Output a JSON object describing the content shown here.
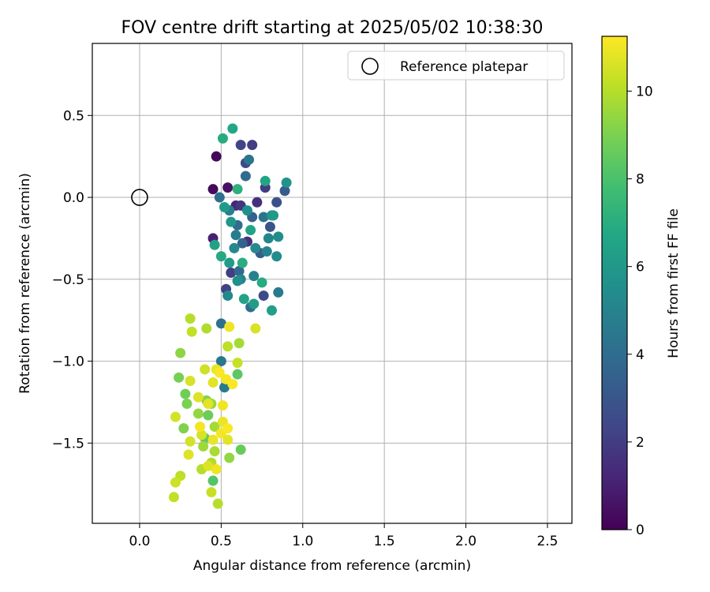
{
  "chart_data": {
    "type": "scatter",
    "title": "FOV centre drift starting at 2025/05/02 10:38:30",
    "xlabel": "Angular distance from reference (arcmin)",
    "ylabel": "Rotation from reference (arcmin)",
    "xlim": [
      -0.29,
      2.65
    ],
    "ylim": [
      -1.99,
      0.94
    ],
    "xticks": [
      0.0,
      0.5,
      1.0,
      1.5,
      2.0,
      2.5
    ],
    "xtick_labels": [
      "0.0",
      "0.5",
      "1.0",
      "1.5",
      "2.0",
      "2.5"
    ],
    "yticks": [
      0.5,
      0.0,
      -0.5,
      -1.0,
      -1.5
    ],
    "ytick_labels": [
      "0.5",
      "0.0",
      "−0.5",
      "−1.0",
      "−1.5"
    ],
    "grid": true,
    "legend": {
      "placement": "top-right",
      "entries": [
        "Reference platepar"
      ]
    },
    "reference_point": {
      "x": 0.0,
      "y": 0.0,
      "label": "Reference platepar"
    },
    "colorbar": {
      "label": "Hours from first FF file",
      "colormap": "viridis",
      "range": [
        0,
        11.25
      ],
      "ticks": [
        0,
        2,
        4,
        6,
        8,
        10
      ],
      "tick_labels": [
        "0",
        "2",
        "4",
        "6",
        "8",
        "10"
      ]
    },
    "points": [
      {
        "x": 0.47,
        "y": 0.25,
        "h": 0.2
      },
      {
        "x": 0.54,
        "y": 0.06,
        "h": 0.5
      },
      {
        "x": 0.45,
        "y": 0.05,
        "h": 0.3
      },
      {
        "x": 0.45,
        "y": -0.25,
        "h": 1.0
      },
      {
        "x": 0.59,
        "y": -0.05,
        "h": 1.2
      },
      {
        "x": 0.72,
        "y": -0.03,
        "h": 1.5
      },
      {
        "x": 0.62,
        "y": 0.32,
        "h": 2.3
      },
      {
        "x": 0.69,
        "y": 0.32,
        "h": 2.0
      },
      {
        "x": 0.65,
        "y": 0.21,
        "h": 2.5
      },
      {
        "x": 0.77,
        "y": 0.06,
        "h": 2.0
      },
      {
        "x": 0.62,
        "y": -0.05,
        "h": 1.8
      },
      {
        "x": 0.66,
        "y": -0.27,
        "h": 1.5
      },
      {
        "x": 0.56,
        "y": -0.46,
        "h": 2.0
      },
      {
        "x": 0.53,
        "y": -0.56,
        "h": 2.2
      },
      {
        "x": 0.76,
        "y": -0.6,
        "h": 2.5
      },
      {
        "x": 0.84,
        "y": -0.03,
        "h": 2.8
      },
      {
        "x": 0.89,
        "y": 0.04,
        "h": 3.2
      },
      {
        "x": 0.8,
        "y": -0.18,
        "h": 3.0
      },
      {
        "x": 0.69,
        "y": -0.12,
        "h": 3.5
      },
      {
        "x": 0.63,
        "y": -0.28,
        "h": 3.6
      },
      {
        "x": 0.61,
        "y": -0.45,
        "h": 3.8
      },
      {
        "x": 0.74,
        "y": -0.34,
        "h": 3.3
      },
      {
        "x": 0.68,
        "y": -0.67,
        "h": 4.0
      },
      {
        "x": 0.5,
        "y": -0.77,
        "h": 4.2
      },
      {
        "x": 0.5,
        "y": -1.0,
        "h": 4.5
      },
      {
        "x": 0.52,
        "y": -1.16,
        "h": 4.6
      },
      {
        "x": 0.85,
        "y": -0.58,
        "h": 4.6
      },
      {
        "x": 0.6,
        "y": -0.17,
        "h": 4.0
      },
      {
        "x": 0.76,
        "y": -0.12,
        "h": 4.3
      },
      {
        "x": 0.55,
        "y": -0.08,
        "h": 4.8
      },
      {
        "x": 0.62,
        "y": -0.5,
        "h": 5.0
      },
      {
        "x": 0.7,
        "y": -0.48,
        "h": 4.9
      },
      {
        "x": 0.58,
        "y": -0.31,
        "h": 5.2
      },
      {
        "x": 0.84,
        "y": -0.36,
        "h": 5.4
      },
      {
        "x": 0.79,
        "y": -0.25,
        "h": 5.1
      },
      {
        "x": 0.66,
        "y": -0.08,
        "h": 5.6
      },
      {
        "x": 0.9,
        "y": 0.09,
        "h": 5.7
      },
      {
        "x": 0.81,
        "y": -0.11,
        "h": 5.8
      },
      {
        "x": 0.85,
        "y": -0.24,
        "h": 5.5
      },
      {
        "x": 0.56,
        "y": -0.15,
        "h": 5.9
      },
      {
        "x": 0.52,
        "y": -0.06,
        "h": 6.1
      },
      {
        "x": 0.57,
        "y": 0.42,
        "h": 6.7
      },
      {
        "x": 0.51,
        "y": 0.36,
        "h": 6.9
      },
      {
        "x": 0.77,
        "y": 0.1,
        "h": 6.6
      },
      {
        "x": 0.6,
        "y": 0.05,
        "h": 7.1
      },
      {
        "x": 0.7,
        "y": -0.65,
        "h": 6.2
      },
      {
        "x": 0.64,
        "y": -0.62,
        "h": 6.5
      },
      {
        "x": 0.81,
        "y": -0.69,
        "h": 6.3
      },
      {
        "x": 0.5,
        "y": -0.36,
        "h": 6.8
      },
      {
        "x": 0.63,
        "y": -0.4,
        "h": 7.0
      },
      {
        "x": 0.46,
        "y": -0.29,
        "h": 6.4
      },
      {
        "x": 0.75,
        "y": -0.52,
        "h": 6.9
      },
      {
        "x": 0.55,
        "y": -0.4,
        "h": 6.1
      },
      {
        "x": 0.68,
        "y": -0.2,
        "h": 6.5
      },
      {
        "x": 0.71,
        "y": -0.31,
        "h": 5.3
      },
      {
        "x": 0.49,
        "y": 0.0,
        "h": 4.1
      },
      {
        "x": 0.67,
        "y": 0.23,
        "h": 4.4
      },
      {
        "x": 0.65,
        "y": 0.13,
        "h": 3.9
      },
      {
        "x": 0.59,
        "y": -0.23,
        "h": 4.7
      },
      {
        "x": 0.78,
        "y": -0.33,
        "h": 5.0
      },
      {
        "x": 0.54,
        "y": -0.6,
        "h": 5.2
      },
      {
        "x": 0.6,
        "y": -0.51,
        "h": 5.6
      },
      {
        "x": 0.82,
        "y": -0.11,
        "h": 6.0
      },
      {
        "x": 0.6,
        "y": -1.08,
        "h": 8.4
      },
      {
        "x": 0.62,
        "y": -1.54,
        "h": 8.6
      },
      {
        "x": 0.45,
        "y": -1.73,
        "h": 8.2
      },
      {
        "x": 0.24,
        "y": -1.1,
        "h": 8.9
      },
      {
        "x": 0.25,
        "y": -0.95,
        "h": 9.3
      },
      {
        "x": 0.28,
        "y": -1.2,
        "h": 8.8
      },
      {
        "x": 0.29,
        "y": -1.26,
        "h": 9.0
      },
      {
        "x": 0.27,
        "y": -1.41,
        "h": 9.1
      },
      {
        "x": 0.36,
        "y": -1.32,
        "h": 9.4
      },
      {
        "x": 0.41,
        "y": -1.24,
        "h": 9.2
      },
      {
        "x": 0.42,
        "y": -1.33,
        "h": 8.7
      },
      {
        "x": 0.4,
        "y": -1.47,
        "h": 8.5
      },
      {
        "x": 0.39,
        "y": -1.52,
        "h": 9.6
      },
      {
        "x": 0.46,
        "y": -1.55,
        "h": 9.8
      },
      {
        "x": 0.44,
        "y": -1.62,
        "h": 9.9
      },
      {
        "x": 0.38,
        "y": -1.66,
        "h": 10.0
      },
      {
        "x": 0.25,
        "y": -1.7,
        "h": 10.1
      },
      {
        "x": 0.22,
        "y": -1.74,
        "h": 10.4
      },
      {
        "x": 0.21,
        "y": -1.83,
        "h": 10.2
      },
      {
        "x": 0.44,
        "y": -1.8,
        "h": 10.3
      },
      {
        "x": 0.48,
        "y": -1.87,
        "h": 10.0
      },
      {
        "x": 0.22,
        "y": -1.34,
        "h": 10.5
      },
      {
        "x": 0.31,
        "y": -1.12,
        "h": 10.6
      },
      {
        "x": 0.36,
        "y": -1.22,
        "h": 10.7
      },
      {
        "x": 0.4,
        "y": -1.05,
        "h": 10.4
      },
      {
        "x": 0.47,
        "y": -1.05,
        "h": 10.9
      },
      {
        "x": 0.45,
        "y": -1.13,
        "h": 10.8
      },
      {
        "x": 0.51,
        "y": -1.27,
        "h": 11.0
      },
      {
        "x": 0.53,
        "y": -1.11,
        "h": 11.1
      },
      {
        "x": 0.57,
        "y": -1.14,
        "h": 11.2
      },
      {
        "x": 0.6,
        "y": -1.01,
        "h": 10.3
      },
      {
        "x": 0.61,
        "y": -0.89,
        "h": 9.7
      },
      {
        "x": 0.54,
        "y": -0.91,
        "h": 10.1
      },
      {
        "x": 0.55,
        "y": -0.79,
        "h": 11.0
      },
      {
        "x": 0.71,
        "y": -0.8,
        "h": 10.6
      },
      {
        "x": 0.41,
        "y": -0.8,
        "h": 9.9
      },
      {
        "x": 0.31,
        "y": -0.74,
        "h": 10.0
      },
      {
        "x": 0.32,
        "y": -0.82,
        "h": 10.2
      },
      {
        "x": 0.44,
        "y": -1.26,
        "h": 9.5
      },
      {
        "x": 0.46,
        "y": -1.4,
        "h": 9.7
      },
      {
        "x": 0.51,
        "y": -1.37,
        "h": 10.9
      },
      {
        "x": 0.5,
        "y": -1.44,
        "h": 11.1
      },
      {
        "x": 0.54,
        "y": -1.48,
        "h": 10.8
      },
      {
        "x": 0.54,
        "y": -1.41,
        "h": 11.2
      },
      {
        "x": 0.31,
        "y": -1.49,
        "h": 10.5
      },
      {
        "x": 0.3,
        "y": -1.57,
        "h": 10.7
      },
      {
        "x": 0.38,
        "y": -1.45,
        "h": 10.6
      },
      {
        "x": 0.45,
        "y": -1.48,
        "h": 10.9
      },
      {
        "x": 0.47,
        "y": -1.66,
        "h": 11.0
      },
      {
        "x": 0.55,
        "y": -1.59,
        "h": 9.4
      },
      {
        "x": 0.42,
        "y": -1.64,
        "h": 10.7
      },
      {
        "x": 0.49,
        "y": -1.07,
        "h": 11.2
      },
      {
        "x": 0.37,
        "y": -1.4,
        "h": 11.1
      },
      {
        "x": 0.42,
        "y": -1.26,
        "h": 10.8
      }
    ]
  }
}
